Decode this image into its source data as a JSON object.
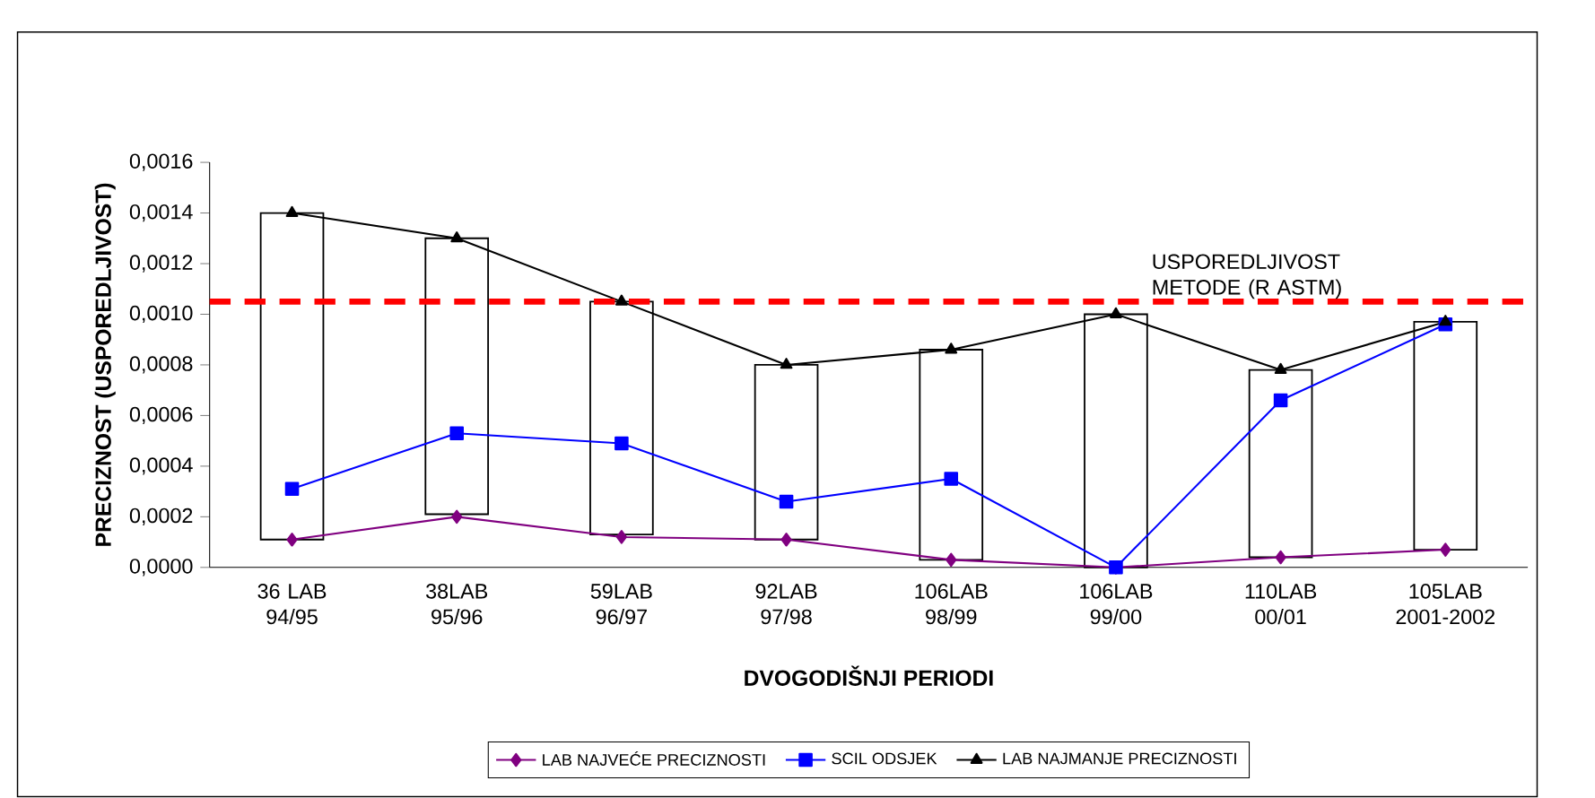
{
  "chart_data": {
    "type": "line",
    "xlabel": "DVOGODIŠNJI PERIODI",
    "ylabel": "PRECIZNOST (USPOREDLJIVOST)",
    "categories": [
      "36 LAB 94/95",
      "38LAB 95/96",
      "59LAB 96/97",
      "92LAB 97/98",
      "106LAB 98/99",
      "106LAB 99/00",
      "110LAB 00/01",
      "105LAB 2001-2002"
    ],
    "ylim": [
      0,
      0.0016
    ],
    "yticks": [
      {
        "value": 0,
        "label": "0,0000"
      },
      {
        "value": 0.0002,
        "label": "0,0002"
      },
      {
        "value": 0.0004,
        "label": "0,0004"
      },
      {
        "value": 0.0006,
        "label": "0,0006"
      },
      {
        "value": 0.0008,
        "label": "0,0008"
      },
      {
        "value": 0.001,
        "label": "0,0010"
      },
      {
        "value": 0.0012,
        "label": "0,0012"
      },
      {
        "value": 0.0014,
        "label": "0,0014"
      },
      {
        "value": 0.0016,
        "label": "0,0016"
      }
    ],
    "series": [
      {
        "type": "bar",
        "color": "#ffffff",
        "base": [
          0.00011,
          0.00021,
          0.00013,
          0.00011,
          3e-05,
          0.0,
          4e-05,
          7e-05
        ],
        "values": [
          0.00129,
          0.00109,
          0.00092,
          0.00069,
          0.00083,
          0.001,
          0.00074,
          0.0009
        ]
      },
      {
        "name": "LAB NAJVEĆE PRECIZNOSTI",
        "color": "#800080",
        "marker": "diamond",
        "values": [
          0.00011,
          0.0002,
          0.00012,
          0.00011,
          3e-05,
          0.0,
          4e-05,
          7e-05
        ]
      },
      {
        "name": "SCIL ODSJEK",
        "color": "#0000ff",
        "marker": "square",
        "values": [
          0.00031,
          0.00053,
          0.00049,
          0.00026,
          0.00035,
          0.0,
          0.00066,
          0.00096
        ]
      },
      {
        "name": "LAB NAJMANJE PRECIZNOSTI",
        "color": "#000000",
        "marker": "triangle",
        "values": [
          0.0014,
          0.0013,
          0.00105,
          0.0008,
          0.00086,
          0.001,
          0.00078,
          0.00097
        ]
      }
    ],
    "ref_lines": [
      {
        "axis": "y",
        "value": 0.00105,
        "label": "USPOREDLJIVOST METODE (R ASTM)",
        "color": "#ff0000",
        "line_style": "dashed"
      }
    ],
    "legend": "bottom",
    "grid": false
  }
}
